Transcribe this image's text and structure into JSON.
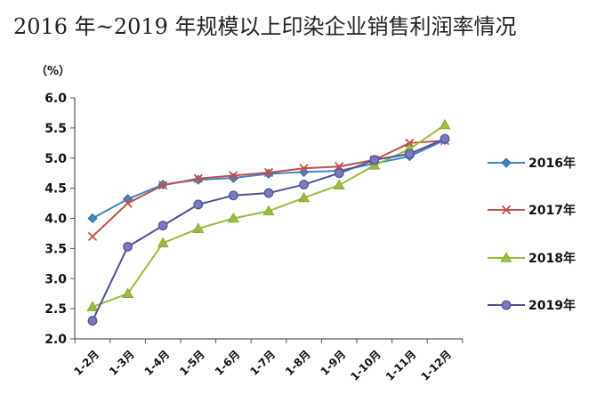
{
  "chart_data": {
    "type": "line",
    "title": "2016 年~2019 年规模以上印染企业销售利润率情况",
    "unit_label": "（%）",
    "xlabel": "",
    "ylabel": "",
    "categories": [
      "1-2月",
      "1-3月",
      "1-4月",
      "1-5月",
      "1-6月",
      "1-7月",
      "1-8月",
      "1-9月",
      "1-10月",
      "1-11月",
      "1-12月"
    ],
    "ylim": [
      2.0,
      6.0
    ],
    "yticks": [
      "2.0",
      "2.5",
      "3.0",
      "3.5",
      "4.0",
      "4.5",
      "5.0",
      "5.5",
      "6.0"
    ],
    "grid": false,
    "legend_position": "right",
    "series": [
      {
        "name": "2016年",
        "color": "#3d84c6",
        "marker": "diamond",
        "values": [
          4.0,
          4.32,
          4.56,
          4.64,
          4.67,
          4.74,
          4.77,
          4.79,
          4.91,
          5.03,
          5.3
        ]
      },
      {
        "name": "2017年",
        "color": "#c0504d",
        "marker": "x",
        "values": [
          3.7,
          4.25,
          4.55,
          4.66,
          4.71,
          4.76,
          4.83,
          4.86,
          4.97,
          5.25,
          5.29
        ]
      },
      {
        "name": "2018年",
        "color": "#9bbb3b",
        "marker": "triangle",
        "values": [
          2.53,
          2.75,
          3.59,
          3.83,
          4.0,
          4.12,
          4.34,
          4.55,
          4.88,
          5.15,
          5.55
        ]
      },
      {
        "name": "2019年",
        "color": "#4f4e9a",
        "marker": "circle",
        "values": [
          2.3,
          3.53,
          3.88,
          4.23,
          4.38,
          4.42,
          4.56,
          4.75,
          4.97,
          5.07,
          5.32
        ]
      }
    ]
  }
}
